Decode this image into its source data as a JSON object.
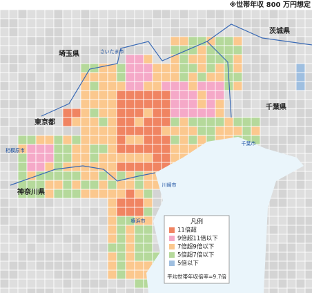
{
  "note": "※世帯年収 800 万円想定",
  "legend": {
    "title": "凡例",
    "items": [
      {
        "label": "11倍超",
        "color": "#f08462"
      },
      {
        "label": "9倍超11倍以下",
        "color": "#f5a9c8"
      },
      {
        "label": "7倍超9倍以下",
        "color": "#fbc88e"
      },
      {
        "label": "5倍超7倍以下",
        "color": "#b5d99b"
      },
      {
        "label": "5倍以下",
        "color": "#9fbfe0"
      }
    ]
  },
  "footnote": "平均世帯年収倍率=9.7倍",
  "labels": {
    "prefectures": [
      "東京都",
      "埼玉県",
      "千葉県",
      "神奈川県",
      "茨城県"
    ],
    "cities": [
      "さいたま市",
      "相模原市",
      "川崎市",
      "横浜市",
      "千葉市"
    ]
  }
}
